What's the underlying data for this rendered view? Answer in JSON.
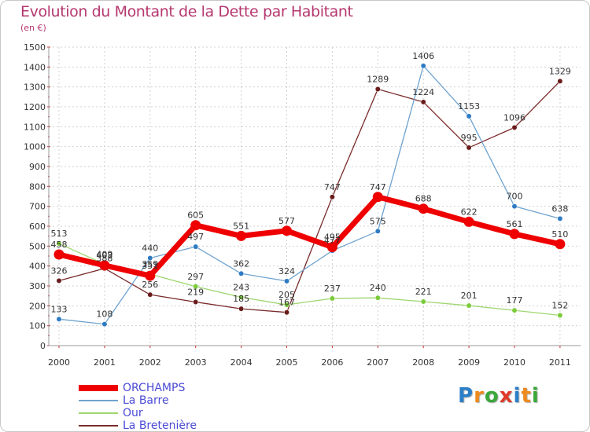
{
  "header": {
    "title": "Evolution du Montant de la Dette par Habitant",
    "subtitle": "(en €)"
  },
  "logo": {
    "text": "Proxiti",
    "letters": [
      "P",
      "r",
      "o",
      "x",
      "i",
      "t",
      "i"
    ],
    "colors": [
      "#2b7fc8",
      "#f08a1c",
      "#3aa83a",
      "#e03a2a",
      "#2b7fc8",
      "#f08a1c",
      "#3aa83a"
    ]
  },
  "chart_data": {
    "type": "line",
    "title": "Evolution du Montant de la Dette par Habitant",
    "subtitle": "(en €)",
    "xlabel": "",
    "ylabel": "",
    "x": [
      "2000",
      "2001",
      "2002",
      "2003",
      "2004",
      "2005",
      "2006",
      "2007",
      "2008",
      "2009",
      "2010",
      "2011"
    ],
    "ylim": [
      0,
      1500
    ],
    "yticks": [
      0,
      100,
      200,
      300,
      400,
      500,
      600,
      700,
      800,
      900,
      1000,
      1100,
      1200,
      1300,
      1400,
      1500
    ],
    "grid": true,
    "legend_position": "bottom-left",
    "series": [
      {
        "name": "ORCHAMPS",
        "color": "#ee0000",
        "style": "thick",
        "values": [
          458,
          403,
          351,
          605,
          551,
          577,
          495,
          747,
          688,
          622,
          561,
          510
        ],
        "labels": [
          "458",
          "403",
          "351",
          "605",
          "551",
          "577",
          "495",
          "747",
          "688",
          "622",
          "561",
          "510"
        ]
      },
      {
        "name": "La Barre",
        "color": "#6fa3cf",
        "marker": "#2e7bc4",
        "style": "thin",
        "values": [
          133,
          108,
          440,
          497,
          362,
          324,
          477,
          575,
          1406,
          1153,
          700,
          638
        ],
        "labels": [
          "133",
          "108",
          "440",
          "497",
          "362",
          "324",
          "477",
          "575",
          "1406",
          "1153",
          "700",
          "638"
        ]
      },
      {
        "name": "Our",
        "color": "#9ed66f",
        "marker": "#7bcb3a",
        "style": "thin",
        "values": [
          513,
          409,
          359,
          297,
          243,
          205,
          237,
          240,
          221,
          201,
          177,
          152
        ],
        "labels": [
          "513",
          "409",
          "359",
          "297",
          "243",
          "205",
          "237",
          "240",
          "221",
          "201",
          "177",
          "152"
        ]
      },
      {
        "name": "La Bretenière",
        "color": "#7a2b2b",
        "marker": "#6a1c1c",
        "style": "thin",
        "values": [
          326,
          388,
          256,
          219,
          185,
          167,
          747,
          1289,
          1224,
          995,
          1096,
          1329
        ],
        "labels": [
          "326",
          "388",
          "256",
          "219",
          "185",
          "167",
          "747",
          "1289",
          "1224",
          "995",
          "1096",
          "1329"
        ]
      }
    ]
  }
}
